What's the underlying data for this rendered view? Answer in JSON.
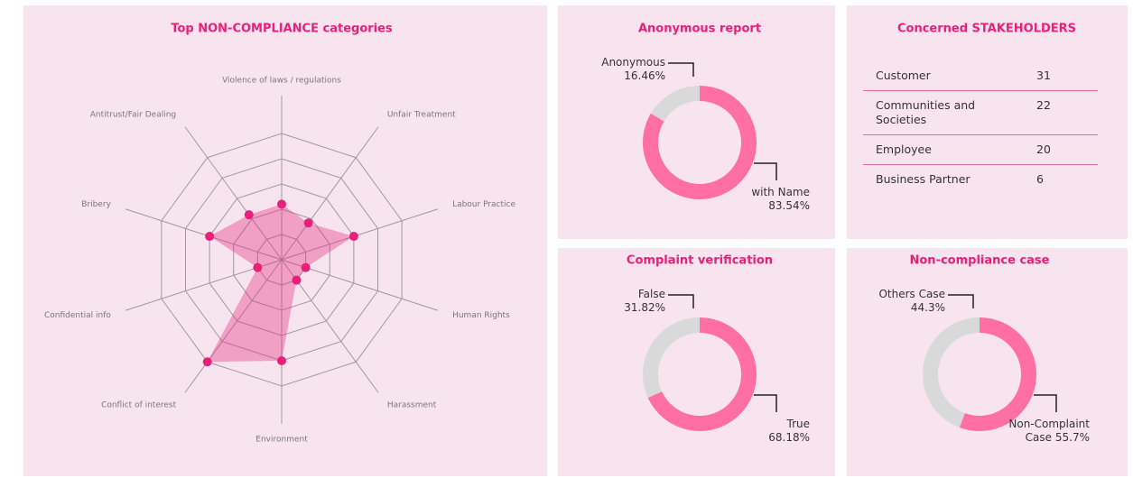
{
  "chart_data": [
    {
      "type": "radar",
      "title": "Top NON-COMPLIANCE categories",
      "categories": [
        "Violence of laws / regulations",
        "Unfair Treatment",
        "Labour Practice",
        "Human Rights",
        "Harassment",
        "Environment",
        "Conflict of interest",
        "Confidential info",
        "Bribery",
        "Antitrust/Fair Dealing"
      ],
      "values": [
        2.2,
        1.8,
        3,
        1,
        1,
        4,
        5,
        1,
        3,
        2.2
      ],
      "color": "#e8207a",
      "fill": "rgba(232,32,122,0.35)",
      "rlim": [
        0,
        5
      ],
      "rticks": [
        1,
        2,
        3,
        4,
        5
      ]
    },
    {
      "type": "pie",
      "title": "Anonymous report",
      "categories": [
        "Anonymous",
        "with Name"
      ],
      "values": [
        16.46,
        83.54
      ],
      "value_labels": [
        "16.46%",
        "83.54%"
      ],
      "colors": [
        "#d9d9d9",
        "#ff6fa3"
      ]
    },
    {
      "type": "pie",
      "title": "Complaint verification",
      "categories": [
        "False",
        "True"
      ],
      "values": [
        31.82,
        68.18
      ],
      "value_labels": [
        "31.82%",
        "68.18%"
      ],
      "colors": [
        "#d9d9d9",
        "#ff6fa3"
      ]
    },
    {
      "type": "pie",
      "title": "Non-compliance case",
      "categories": [
        "Others Case",
        "Non-Complaint Case"
      ],
      "values": [
        44.3,
        55.7
      ],
      "value_labels": [
        "44.3%",
        "55.7%"
      ],
      "colors": [
        "#d9d9d9",
        "#ff6fa3"
      ]
    }
  ],
  "table": {
    "title": "Concerned STAKEHOLDERS",
    "rows": [
      [
        "Customer",
        "31"
      ],
      [
        "Communities and Societies",
        "22"
      ],
      [
        "Employee",
        "20"
      ],
      [
        "Business Partner",
        "6"
      ]
    ]
  }
}
